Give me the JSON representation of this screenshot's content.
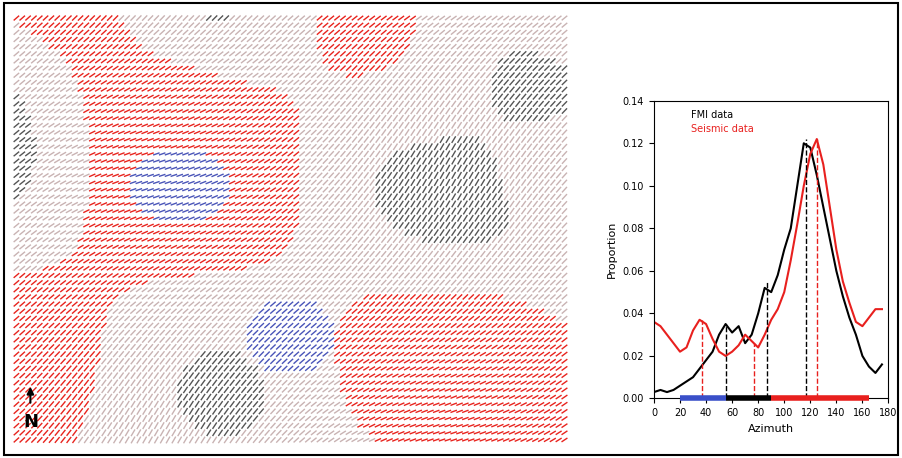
{
  "chart_data": {
    "type": "line",
    "x_label": "Azimuth",
    "y_label": "Proportion",
    "x": [
      0,
      5,
      10,
      15,
      20,
      25,
      30,
      35,
      40,
      45,
      50,
      55,
      60,
      65,
      70,
      75,
      80,
      85,
      90,
      95,
      100,
      105,
      110,
      115,
      120,
      125,
      130,
      135,
      140,
      145,
      150,
      155,
      160,
      165,
      170,
      175
    ],
    "series": [
      {
        "name": "FMI data",
        "color": "#000000",
        "values": [
          0.003,
          0.004,
          0.003,
          0.004,
          0.006,
          0.008,
          0.01,
          0.014,
          0.018,
          0.022,
          0.03,
          0.035,
          0.031,
          0.034,
          0.026,
          0.03,
          0.04,
          0.052,
          0.05,
          0.058,
          0.07,
          0.08,
          0.1,
          0.12,
          0.118,
          0.105,
          0.09,
          0.075,
          0.06,
          0.048,
          0.038,
          0.03,
          0.02,
          0.015,
          0.012,
          0.016
        ]
      },
      {
        "name": "Seismic data",
        "color": "#e8201e",
        "values": [
          0.036,
          0.034,
          0.03,
          0.026,
          0.022,
          0.024,
          0.032,
          0.037,
          0.035,
          0.028,
          0.022,
          0.02,
          0.022,
          0.025,
          0.03,
          0.027,
          0.024,
          0.03,
          0.037,
          0.042,
          0.05,
          0.065,
          0.082,
          0.1,
          0.115,
          0.122,
          0.11,
          0.09,
          0.07,
          0.055,
          0.045,
          0.036,
          0.034,
          0.038,
          0.042,
          0.042
        ]
      }
    ],
    "reference_lines": [
      {
        "x": 37,
        "y": 0.037,
        "color": "#e8201e"
      },
      {
        "x": 55,
        "y": 0.035,
        "color": "#000000"
      },
      {
        "x": 77,
        "y": 0.026,
        "color": "#e8201e"
      },
      {
        "x": 87,
        "y": 0.055,
        "color": "#000000"
      },
      {
        "x": 117,
        "y": 0.122,
        "color": "#000000"
      },
      {
        "x": 125,
        "y": 0.122,
        "color": "#e8201e"
      }
    ],
    "ranges": [
      {
        "start": 20,
        "end": 55,
        "color": "#3a4fc8"
      },
      {
        "start": 55,
        "end": 90,
        "color": "#000000"
      },
      {
        "start": 90,
        "end": 165,
        "color": "#e8201e"
      }
    ],
    "xlim": [
      0,
      180
    ],
    "ylim": [
      0,
      0.14
    ],
    "xticks": [
      0,
      20,
      40,
      60,
      80,
      100,
      120,
      140,
      160,
      180
    ],
    "yticks": [
      {
        "value": 0.0,
        "label": "0.00"
      },
      {
        "value": 0.02,
        "label": "0.02"
      },
      {
        "value": 0.04,
        "label": "0.04"
      },
      {
        "value": 0.06,
        "label": "0.06"
      },
      {
        "value": 0.08,
        "label": "0.08"
      },
      {
        "value": 0.1,
        "label": "0.10"
      },
      {
        "value": 0.12,
        "label": "0.12"
      },
      {
        "value": 0.14,
        "label": "0.14"
      }
    ],
    "legend": "upper left",
    "grid": false
  },
  "map": {
    "north_label": "N"
  }
}
